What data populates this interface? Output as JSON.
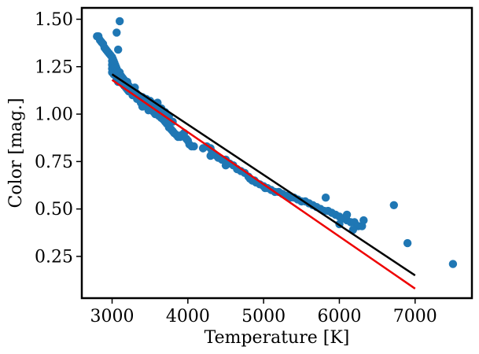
{
  "chart_data": {
    "type": "scatter",
    "title": "",
    "xlabel": "Temperature [K]",
    "ylabel": "Color [mag.]",
    "xlim": [
      2600,
      7750
    ],
    "ylim": [
      0.03,
      1.56
    ],
    "xticks": [
      3000,
      4000,
      5000,
      6000,
      7000
    ],
    "xtick_labels": [
      "3000",
      "4000",
      "5000",
      "6000",
      "7000"
    ],
    "yticks": [
      0.25,
      0.5,
      0.75,
      1.0,
      1.25,
      1.5
    ],
    "ytick_labels": [
      "0.25",
      "0.50",
      "0.75",
      "1.00",
      "1.25",
      "1.50"
    ],
    "grid": false,
    "legend": "none",
    "colors": {
      "points": "#1f77b4",
      "fit_black": "#000000",
      "fit_red": "#ee0000"
    },
    "series": [
      {
        "type": "scatter",
        "points": [
          [
            2800,
            1.41
          ],
          [
            2820,
            1.41
          ],
          [
            2840,
            1.39
          ],
          [
            2860,
            1.38
          ],
          [
            2880,
            1.37
          ],
          [
            2900,
            1.35
          ],
          [
            2920,
            1.34
          ],
          [
            2940,
            1.33
          ],
          [
            2960,
            1.32
          ],
          [
            2980,
            1.31
          ],
          [
            3000,
            1.3
          ],
          [
            3000,
            1.28
          ],
          [
            3000,
            1.26
          ],
          [
            3000,
            1.24
          ],
          [
            3000,
            1.22
          ],
          [
            3010,
            1.29
          ],
          [
            3010,
            1.27
          ],
          [
            3010,
            1.25
          ],
          [
            3010,
            1.23
          ],
          [
            3020,
            1.28
          ],
          [
            3020,
            1.26
          ],
          [
            3020,
            1.24
          ],
          [
            3020,
            1.21
          ],
          [
            3030,
            1.27
          ],
          [
            3030,
            1.25
          ],
          [
            3030,
            1.22
          ],
          [
            3040,
            1.26
          ],
          [
            3040,
            1.24
          ],
          [
            3040,
            1.21
          ],
          [
            3050,
            1.25
          ],
          [
            3050,
            1.23
          ],
          [
            3050,
            1.2
          ],
          [
            3060,
            1.24
          ],
          [
            3060,
            1.22
          ],
          [
            3060,
            1.19
          ],
          [
            3070,
            1.23
          ],
          [
            3070,
            1.21
          ],
          [
            3070,
            1.18
          ],
          [
            3080,
            1.22
          ],
          [
            3080,
            1.2
          ],
          [
            3080,
            1.17
          ],
          [
            3090,
            1.21
          ],
          [
            3090,
            1.19
          ],
          [
            3100,
            1.22
          ],
          [
            3100,
            1.2
          ],
          [
            3100,
            1.17
          ],
          [
            3110,
            1.19
          ],
          [
            3120,
            1.2
          ],
          [
            3120,
            1.17
          ],
          [
            3130,
            1.18
          ],
          [
            3140,
            1.19
          ],
          [
            3140,
            1.16
          ],
          [
            3150,
            1.17
          ],
          [
            3160,
            1.18
          ],
          [
            3160,
            1.15
          ],
          [
            3170,
            1.17
          ],
          [
            3180,
            1.16
          ],
          [
            3180,
            1.14
          ],
          [
            3200,
            1.17
          ],
          [
            3200,
            1.15
          ],
          [
            3200,
            1.13
          ],
          [
            3220,
            1.15
          ],
          [
            3220,
            1.12
          ],
          [
            3240,
            1.14
          ],
          [
            3250,
            1.12
          ],
          [
            3260,
            1.13
          ],
          [
            3270,
            1.1
          ],
          [
            3280,
            1.12
          ],
          [
            3300,
            1.14
          ],
          [
            3300,
            1.1
          ],
          [
            3320,
            1.11
          ],
          [
            3330,
            1.08
          ],
          [
            3350,
            1.09
          ],
          [
            3370,
            1.07
          ],
          [
            3380,
            1.06
          ],
          [
            3400,
            1.09
          ],
          [
            3400,
            1.06
          ],
          [
            3400,
            1.04
          ],
          [
            3420,
            1.05
          ],
          [
            3450,
            1.08
          ],
          [
            3450,
            1.04
          ],
          [
            3480,
            1.02
          ],
          [
            3500,
            1.07
          ],
          [
            3500,
            1.03
          ],
          [
            3520,
            1.06
          ],
          [
            3550,
            1.05
          ],
          [
            3550,
            1.01
          ],
          [
            3570,
            1.0
          ],
          [
            3600,
            1.06
          ],
          [
            3600,
            1.02
          ],
          [
            3620,
            0.99
          ],
          [
            3650,
            1.03
          ],
          [
            3650,
            0.98
          ],
          [
            3680,
            0.97
          ],
          [
            3700,
            1.01
          ],
          [
            3700,
            0.96
          ],
          [
            3720,
            0.95
          ],
          [
            3750,
            0.99
          ],
          [
            3750,
            0.93
          ],
          [
            3780,
            0.92
          ],
          [
            3800,
            0.96
          ],
          [
            3800,
            0.91
          ],
          [
            3820,
            0.9
          ],
          [
            3850,
            0.89
          ],
          [
            3870,
            0.88
          ],
          [
            3900,
            0.88
          ],
          [
            3920,
            0.89
          ],
          [
            3950,
            0.9
          ],
          [
            3980,
            0.87
          ],
          [
            4000,
            0.86
          ],
          [
            4020,
            0.84
          ],
          [
            4050,
            0.83
          ],
          [
            4080,
            0.83
          ],
          [
            4200,
            0.82
          ],
          [
            4250,
            0.83
          ],
          [
            4300,
            0.82
          ],
          [
            4300,
            0.78
          ],
          [
            4320,
            0.8
          ],
          [
            4350,
            0.79
          ],
          [
            4380,
            0.78
          ],
          [
            4400,
            0.77
          ],
          [
            4450,
            0.76
          ],
          [
            4500,
            0.76
          ],
          [
            4500,
            0.73
          ],
          [
            4550,
            0.74
          ],
          [
            4600,
            0.73
          ],
          [
            4650,
            0.71
          ],
          [
            4700,
            0.7
          ],
          [
            4750,
            0.69
          ],
          [
            4800,
            0.67
          ],
          [
            4820,
            0.66
          ],
          [
            4850,
            0.65
          ],
          [
            4880,
            0.65
          ],
          [
            4900,
            0.64
          ],
          [
            4950,
            0.63
          ],
          [
            5000,
            0.62
          ],
          [
            5020,
            0.61
          ],
          [
            5050,
            0.61
          ],
          [
            5100,
            0.6
          ],
          [
            5150,
            0.59
          ],
          [
            5200,
            0.59
          ],
          [
            5250,
            0.58
          ],
          [
            5300,
            0.57
          ],
          [
            5350,
            0.56
          ],
          [
            5400,
            0.56
          ],
          [
            5450,
            0.55
          ],
          [
            5500,
            0.54
          ],
          [
            5550,
            0.54
          ],
          [
            5600,
            0.53
          ],
          [
            5650,
            0.52
          ],
          [
            5700,
            0.51
          ],
          [
            5750,
            0.5
          ],
          [
            5800,
            0.49
          ],
          [
            5820,
            0.56
          ],
          [
            5850,
            0.49
          ],
          [
            5900,
            0.48
          ],
          [
            5950,
            0.47
          ],
          [
            6000,
            0.46
          ],
          [
            6050,
            0.45
          ],
          [
            6100,
            0.44
          ],
          [
            6150,
            0.43
          ],
          [
            6200,
            0.43
          ],
          [
            6250,
            0.41
          ],
          [
            6300,
            0.41
          ],
          [
            6320,
            0.44
          ],
          [
            6180,
            0.39
          ],
          [
            6000,
            0.42
          ],
          [
            6100,
            0.47
          ],
          [
            3080,
            1.34
          ],
          [
            3060,
            1.43
          ],
          [
            3100,
            1.49
          ],
          [
            6720,
            0.52
          ],
          [
            6900,
            0.32
          ],
          [
            7500,
            0.21
          ]
        ]
      },
      {
        "type": "line",
        "points": [
          [
            3000,
            1.21
          ],
          [
            7000,
            0.15
          ]
        ]
      },
      {
        "type": "line",
        "points": [
          [
            3000,
            1.18
          ],
          [
            7000,
            0.08
          ]
        ]
      }
    ]
  }
}
